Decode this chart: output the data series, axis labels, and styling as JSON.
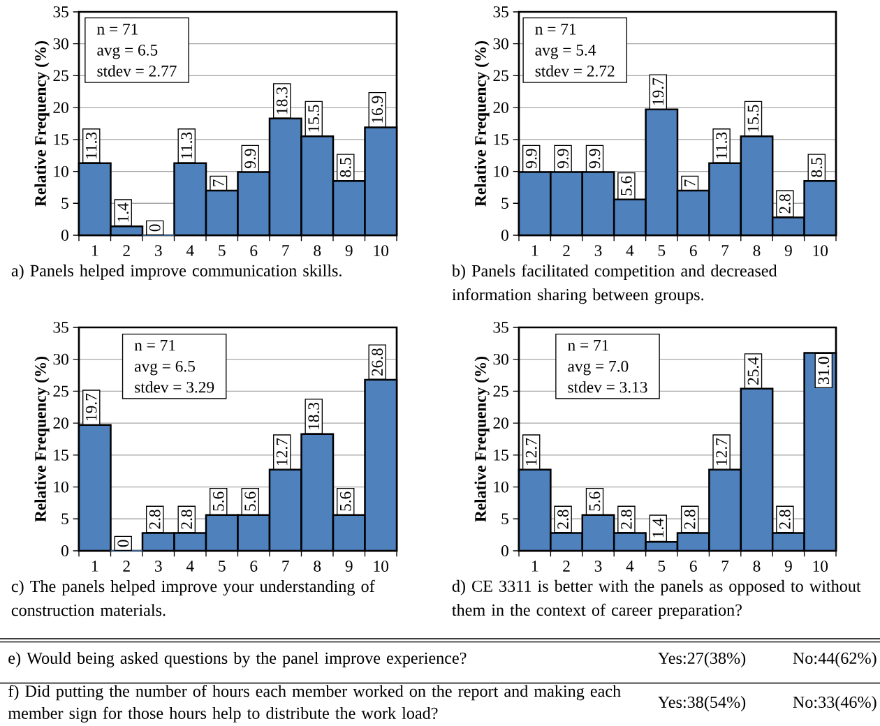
{
  "chart_data": [
    {
      "type": "bar",
      "xlabel": "a) Panels helped improve communication skills.",
      "ylabel": "Relative Frequency (%)",
      "categories": [
        "1",
        "2",
        "3",
        "4",
        "5",
        "6",
        "7",
        "8",
        "9",
        "10"
      ],
      "color": "#4f81bd",
      "values": [
        11.3,
        1.4,
        0,
        11.3,
        7,
        9.9,
        18.3,
        15.5,
        8.5,
        16.9
      ],
      "value_labels": [
        "11.3",
        "1.4",
        "0",
        "11.3",
        "7",
        "9.9",
        "18.3",
        "15.5",
        "8.5",
        "16.9"
      ],
      "ylim": [
        0,
        35
      ],
      "yticks": [
        0,
        5,
        10,
        15,
        20,
        25,
        30,
        35
      ],
      "grid": "y",
      "annotations": [
        "n = 71",
        "avg = 6.5",
        "stdev = 2.77"
      ]
    },
    {
      "type": "bar",
      "xlabel": "b) Panels facilitated competition and decreased information sharing between groups.",
      "ylabel": "Relative Frequency (%)",
      "categories": [
        "1",
        "2",
        "3",
        "4",
        "5",
        "6",
        "7",
        "8",
        "9",
        "10"
      ],
      "color": "#4f81bd",
      "values": [
        9.9,
        9.9,
        9.9,
        5.6,
        19.7,
        7,
        11.3,
        15.5,
        2.8,
        8.5
      ],
      "value_labels": [
        "9.9",
        "9.9",
        "9.9",
        "5.6",
        "19.7",
        "7",
        "11.3",
        "15.5",
        "2.8",
        "8.5"
      ],
      "ylim": [
        0,
        35
      ],
      "yticks": [
        0,
        5,
        10,
        15,
        20,
        25,
        30,
        35
      ],
      "grid": "y",
      "annotations": [
        "n = 71",
        "avg = 5.4",
        "stdev = 2.72"
      ]
    },
    {
      "type": "bar",
      "xlabel": "c) The panels helped improve your understanding of construction materials.",
      "ylabel": "Relative Frequency (%)",
      "categories": [
        "1",
        "2",
        "3",
        "4",
        "5",
        "6",
        "7",
        "8",
        "9",
        "10"
      ],
      "color": "#4f81bd",
      "values": [
        19.7,
        0,
        2.8,
        2.8,
        5.6,
        5.6,
        12.7,
        18.3,
        5.6,
        26.8
      ],
      "value_labels": [
        "19.7",
        "0",
        "2.8",
        "2.8",
        "5.6",
        "5.6",
        "12.7",
        "18.3",
        "5.6",
        "26.8"
      ],
      "ylim": [
        0,
        35
      ],
      "yticks": [
        0,
        5,
        10,
        15,
        20,
        25,
        30,
        35
      ],
      "grid": "y",
      "annotations": [
        "n = 71",
        "avg = 6.5",
        "stdev = 3.29"
      ]
    },
    {
      "type": "bar",
      "xlabel": "d) CE 3311 is better with the panels as opposed to without them in the context of career preparation?",
      "ylabel": "Relative Frequency (%)",
      "categories": [
        "1",
        "2",
        "3",
        "4",
        "5",
        "6",
        "7",
        "8",
        "9",
        "10"
      ],
      "color": "#4f81bd",
      "values": [
        12.7,
        2.8,
        5.6,
        2.8,
        1.4,
        2.8,
        12.7,
        25.4,
        2.8,
        31.0
      ],
      "value_labels": [
        "12.7",
        "2.8",
        "5.6",
        "2.8",
        "1.4",
        "2.8",
        "12.7",
        "25.4",
        "2.8",
        "31.0"
      ],
      "ylim": [
        0,
        35
      ],
      "yticks": [
        0,
        5,
        10,
        15,
        20,
        25,
        30,
        35
      ],
      "grid": "y",
      "annotations": [
        "n = 71",
        "avg = 7.0",
        "stdev = 3.13"
      ]
    },
    {
      "type": "other",
      "annotations": [
        "e) Would being asked questions by the panel improve experience?",
        "Yes:27(38%)",
        "No:44(62%)",
        "f) Did putting the number of hours each member worked on the report and making each member sign for those hours help to distribute the work load?",
        "Yes:38(54%)",
        "No:33(46%)"
      ]
    }
  ]
}
